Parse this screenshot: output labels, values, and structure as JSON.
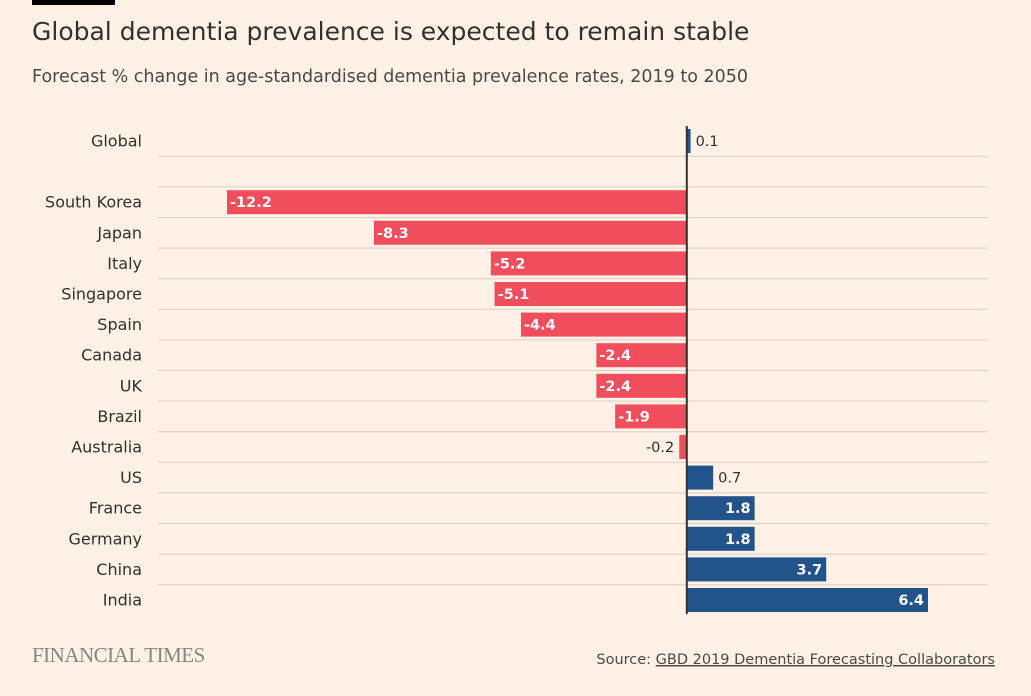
{
  "chart_data": {
    "type": "hbar",
    "title": "Global dementia prevalence is expected to remain stable",
    "subtitle": "Forecast % change in age-standardised dementia prevalence rates, 2019 to 2050",
    "categories": [
      "Global",
      null,
      "South Korea",
      "Japan",
      "Italy",
      "Singapore",
      "Spain",
      "Canada",
      "UK",
      "Brazil",
      "Australia",
      "US",
      "France",
      "Germany",
      "China",
      "India"
    ],
    "values": [
      0.1,
      null,
      -12.2,
      -8.3,
      -5.2,
      -5.1,
      -4.4,
      -2.4,
      -2.4,
      -1.9,
      -0.2,
      0.7,
      1.8,
      1.8,
      3.7,
      6.4
    ],
    "positive_color": "#22538a",
    "negative_color": "#f04d5d",
    "grid": true,
    "logo": "FINANCIAL TIMES",
    "source_label": "Source:",
    "source": "GBD 2019 Dementia Forecasting Collaborators"
  }
}
